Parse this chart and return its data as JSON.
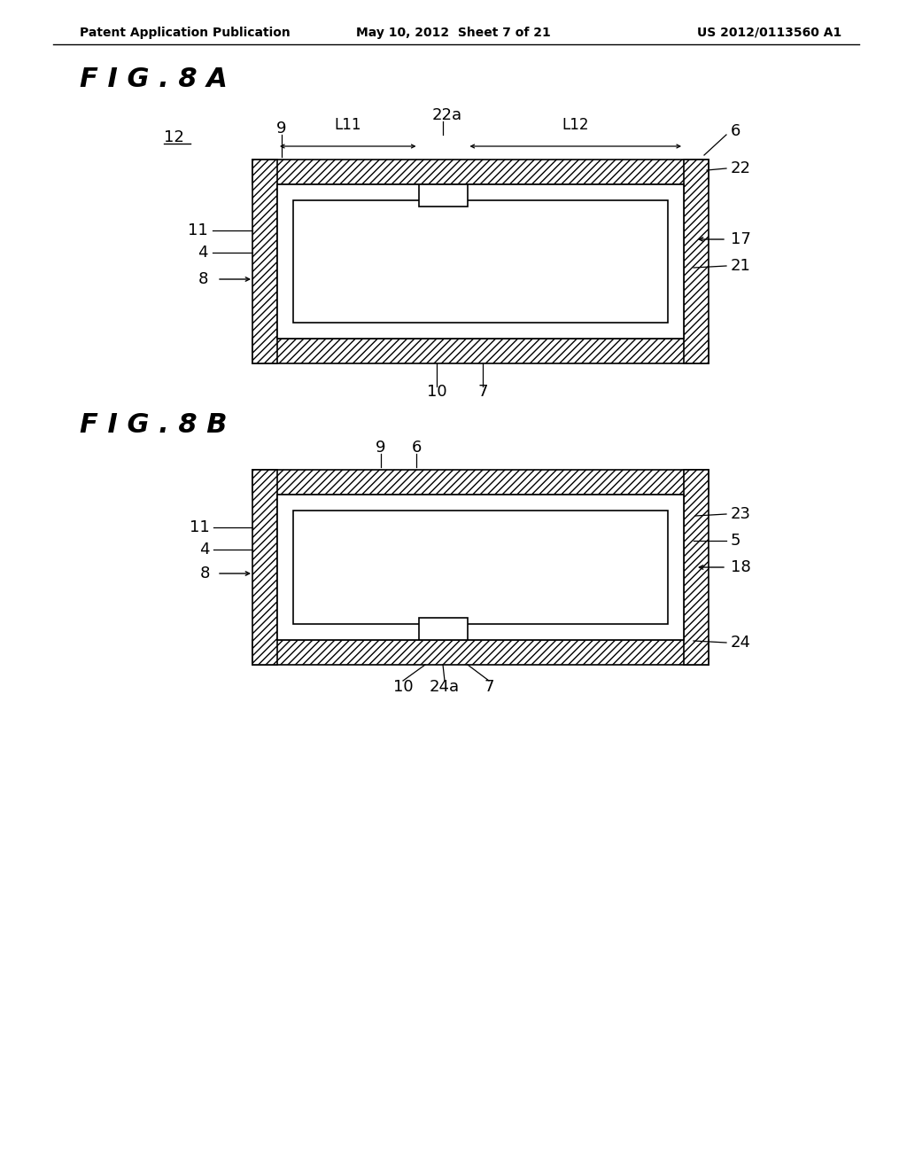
{
  "bg_color": "#ffffff",
  "header_left": "Patent Application Publication",
  "header_mid": "May 10, 2012  Sheet 7 of 21",
  "header_right": "US 2012/0113560 A1",
  "fig_label_A": "F I G . 8 A",
  "fig_label_B": "F I G . 8 B",
  "hatch_pattern": "////",
  "hatch_lw": 0.5
}
